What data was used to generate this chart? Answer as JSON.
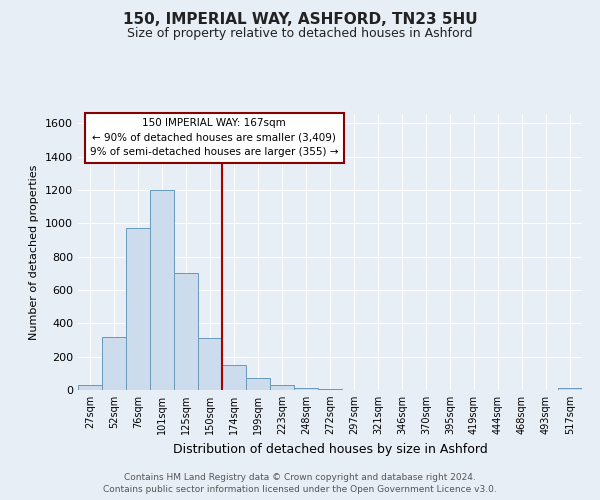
{
  "title1": "150, IMPERIAL WAY, ASHFORD, TN23 5HU",
  "title2": "Size of property relative to detached houses in Ashford",
  "xlabel": "Distribution of detached houses by size in Ashford",
  "ylabel": "Number of detached properties",
  "bin_labels": [
    "27sqm",
    "52sqm",
    "76sqm",
    "101sqm",
    "125sqm",
    "150sqm",
    "174sqm",
    "199sqm",
    "223sqm",
    "248sqm",
    "272sqm",
    "297sqm",
    "321sqm",
    "346sqm",
    "370sqm",
    "395sqm",
    "419sqm",
    "444sqm",
    "468sqm",
    "493sqm",
    "517sqm"
  ],
  "bar_heights": [
    30,
    320,
    970,
    1200,
    700,
    315,
    150,
    75,
    30,
    10,
    5,
    3,
    2,
    2,
    2,
    1,
    1,
    1,
    1,
    1,
    10
  ],
  "bar_color": "#ccdcec",
  "bar_edge_color": "#6699bb",
  "property_line_x": 5.5,
  "property_line_label": "150 IMPERIAL WAY: 167sqm",
  "annotation_line1": "← 90% of detached houses are smaller (3,409)",
  "annotation_line2": "9% of semi-detached houses are larger (355) →",
  "annotation_box_color": "#ffffff",
  "annotation_box_edge": "#880000",
  "vline_color": "#aa0000",
  "ylim": [
    0,
    1650
  ],
  "yticks": [
    0,
    200,
    400,
    600,
    800,
    1000,
    1200,
    1400,
    1600
  ],
  "footer1": "Contains HM Land Registry data © Crown copyright and database right 2024.",
  "footer2": "Contains public sector information licensed under the Open Government Licence v3.0.",
  "bg_color": "#e8eef6",
  "plot_bg_color": "#e8eef6",
  "title1_fontsize": 11,
  "title2_fontsize": 9
}
